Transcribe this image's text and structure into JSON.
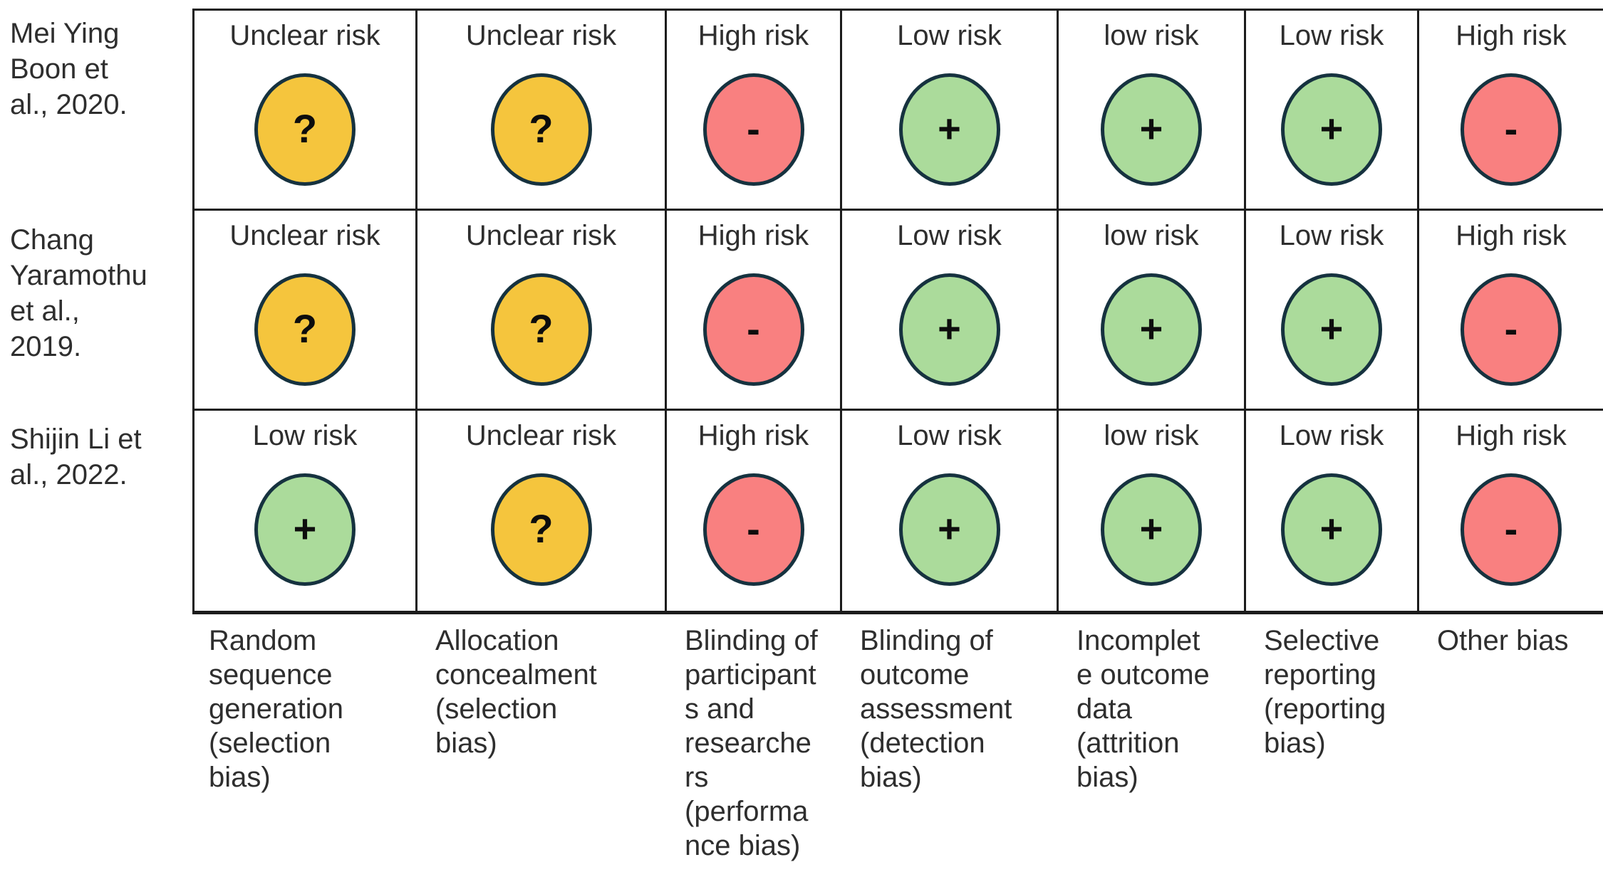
{
  "colors": {
    "unclear_fill": "#f5c53d",
    "high_fill": "#f98080",
    "low_fill": "#abdb9b",
    "circle_border": "#16323f",
    "grid_line": "#1c1c1c",
    "text": "#2e2e2e"
  },
  "studies": [
    {
      "name": "Mei Ying\nBoon et\nal., 2020.",
      "cells": [
        {
          "label": "Unclear risk",
          "risk": "unclear",
          "symbol": "?"
        },
        {
          "label": "Unclear risk",
          "risk": "unclear",
          "symbol": "?"
        },
        {
          "label": "High risk",
          "risk": "high",
          "symbol": "-"
        },
        {
          "label": "Low risk",
          "risk": "low",
          "symbol": "+"
        },
        {
          "label": "low risk",
          "risk": "low",
          "symbol": "+"
        },
        {
          "label": "Low risk",
          "risk": "low",
          "symbol": "+"
        },
        {
          "label": "High risk",
          "risk": "high",
          "symbol": "-"
        }
      ]
    },
    {
      "name": "Chang\nYaramothu\net al.,\n2019.",
      "cells": [
        {
          "label": "Unclear risk",
          "risk": "unclear",
          "symbol": "?"
        },
        {
          "label": "Unclear risk",
          "risk": "unclear",
          "symbol": "?"
        },
        {
          "label": "High risk",
          "risk": "high",
          "symbol": "-"
        },
        {
          "label": "Low risk",
          "risk": "low",
          "symbol": "+"
        },
        {
          "label": "low risk",
          "risk": "low",
          "symbol": "+"
        },
        {
          "label": "Low risk",
          "risk": "low",
          "symbol": "+"
        },
        {
          "label": "High risk",
          "risk": "high",
          "symbol": "-"
        }
      ]
    },
    {
      "name": "Shijin Li et\nal., 2022.",
      "cells": [
        {
          "label": "Low risk",
          "risk": "low",
          "symbol": "+"
        },
        {
          "label": "Unclear risk",
          "risk": "unclear",
          "symbol": "?"
        },
        {
          "label": "High risk",
          "risk": "high",
          "symbol": "-"
        },
        {
          "label": "Low risk",
          "risk": "low",
          "symbol": "+"
        },
        {
          "label": "low risk",
          "risk": "low",
          "symbol": "+"
        },
        {
          "label": "Low risk",
          "risk": "low",
          "symbol": "+"
        },
        {
          "label": "High risk",
          "risk": "high",
          "symbol": "-"
        }
      ]
    }
  ],
  "domains": [
    {
      "text": "Random\nsequence\ngeneration\n(selection\nbias)"
    },
    {
      "text": "Allocation\nconcealment\n(selection\nbias)"
    },
    {
      "text": "Blinding of\nparticipant\ns and\nresearche\nrs\n(performa\nnce bias)"
    },
    {
      "text": "Blinding of\noutcome\nassessment\n(detection\nbias)"
    },
    {
      "text": "Incomplet\ne outcome\ndata\n(attrition\nbias)"
    },
    {
      "text": "Selective\nreporting\n(reporting\nbias)"
    },
    {
      "text": "Other bias"
    }
  ],
  "chart_data": {
    "type": "table",
    "rows": [
      "Mei Ying Boon et al., 2020.",
      "Chang Yaramothu et al., 2019.",
      "Shijin Li et al., 2022."
    ],
    "columns": [
      "Random sequence generation (selection bias)",
      "Allocation concealment (selection bias)",
      "Blinding of participants and researchers (performance bias)",
      "Blinding of outcome assessment (detection bias)",
      "Incomplete outcome data (attrition bias)",
      "Selective reporting (reporting bias)",
      "Other bias"
    ],
    "values": [
      [
        "Unclear risk",
        "Unclear risk",
        "High risk",
        "Low risk",
        "low risk",
        "Low risk",
        "High risk"
      ],
      [
        "Unclear risk",
        "Unclear risk",
        "High risk",
        "Low risk",
        "low risk",
        "Low risk",
        "High risk"
      ],
      [
        "Low risk",
        "Unclear risk",
        "High risk",
        "Low risk",
        "low risk",
        "Low risk",
        "High risk"
      ]
    ],
    "symbol_legend": {
      "?": "Unclear risk",
      "+": "Low risk",
      "-": "High risk"
    }
  }
}
